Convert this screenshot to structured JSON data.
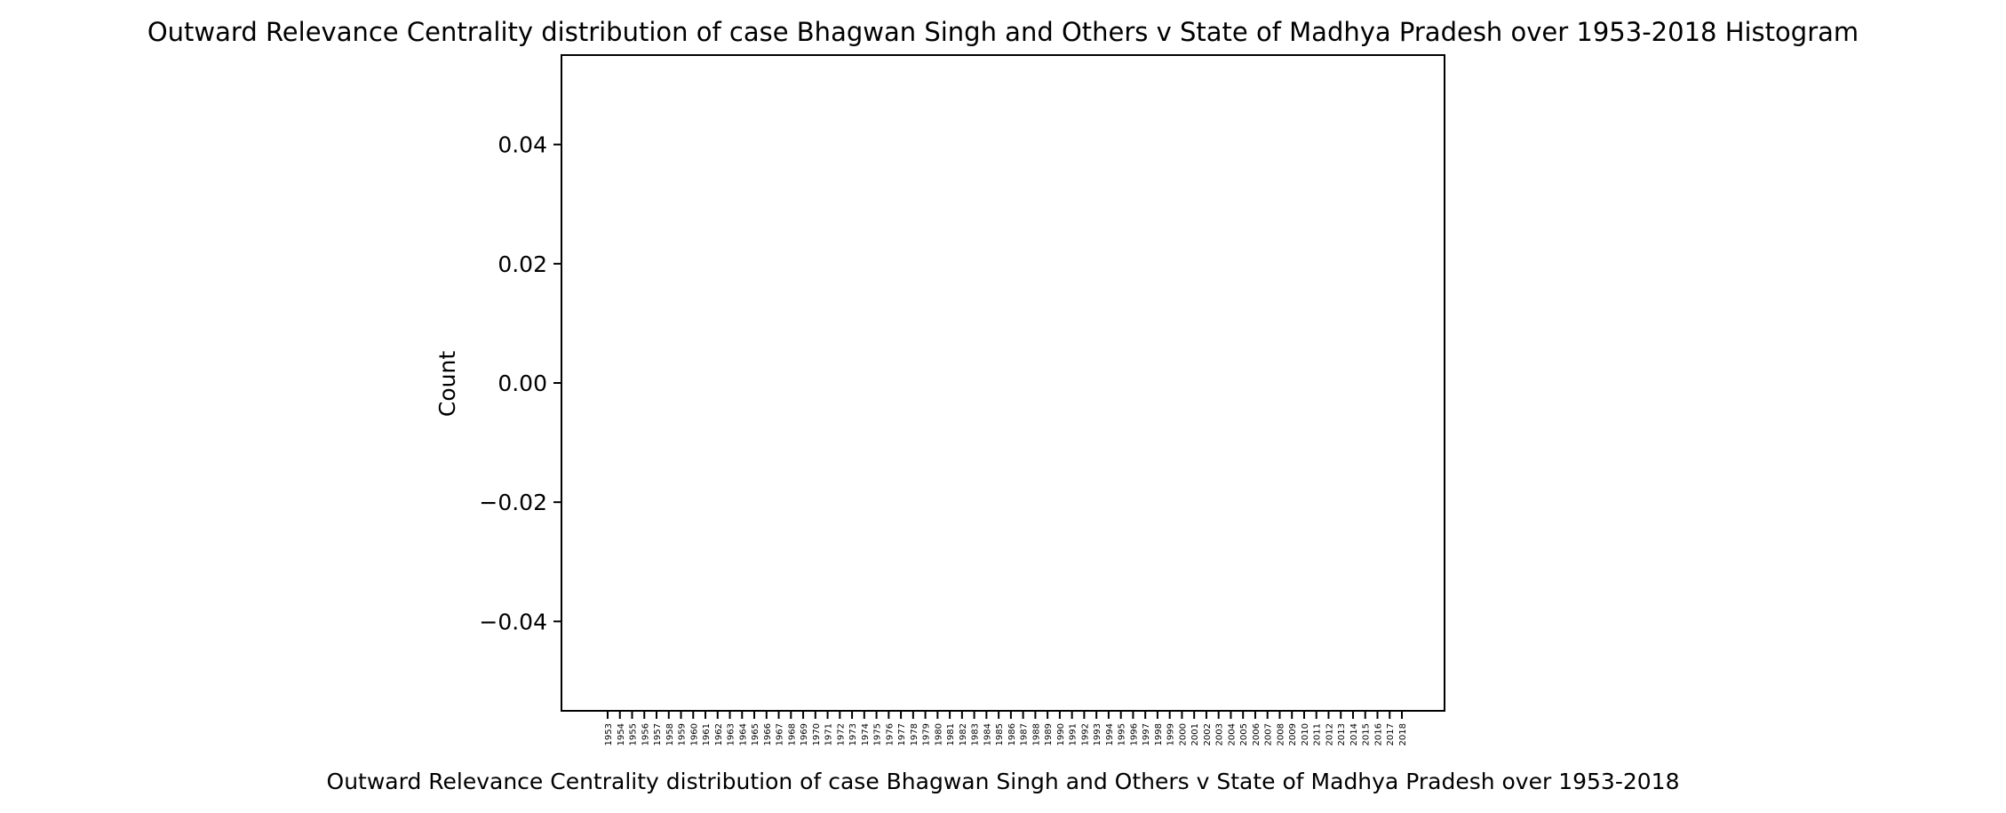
{
  "chart_data": {
    "type": "bar",
    "title": "Outward Relevance Centrality distribution of case Bhagwan Singh and Others v State of Madhya Pradesh over 1953-2018 Histogram",
    "xlabel": "Outward Relevance Centrality distribution of case Bhagwan Singh and Others v State of Madhya Pradesh over 1953-2018",
    "ylabel": "Count",
    "categories": [
      "1953",
      "1954",
      "1955",
      "1956",
      "1957",
      "1958",
      "1959",
      "1960",
      "1961",
      "1962",
      "1963",
      "1964",
      "1965",
      "1966",
      "1967",
      "1968",
      "1969",
      "1970",
      "1971",
      "1972",
      "1973",
      "1974",
      "1975",
      "1976",
      "1977",
      "1978",
      "1979",
      "1980",
      "1981",
      "1982",
      "1983",
      "1984",
      "1985",
      "1986",
      "1987",
      "1988",
      "1989",
      "1990",
      "1991",
      "1992",
      "1993",
      "1994",
      "1995",
      "1996",
      "1997",
      "1998",
      "1999",
      "2000",
      "2001",
      "2002",
      "2003",
      "2004",
      "2005",
      "2006",
      "2007",
      "2008",
      "2009",
      "2010",
      "2011",
      "2012",
      "2013",
      "2014",
      "2015",
      "2016",
      "2017",
      "2018"
    ],
    "values": [
      0,
      0,
      0,
      0,
      0,
      0,
      0,
      0,
      0,
      0,
      0,
      0,
      0,
      0,
      0,
      0,
      0,
      0,
      0,
      0,
      0,
      0,
      0,
      0,
      0,
      0,
      0,
      0,
      0,
      0,
      0,
      0,
      0,
      0,
      0,
      0,
      0,
      0,
      0,
      0,
      0,
      0,
      0,
      0,
      0,
      0,
      0,
      0,
      0,
      0,
      0,
      0,
      0,
      0,
      0,
      0,
      0,
      0,
      0,
      0,
      0,
      0,
      0,
      0,
      0,
      0
    ],
    "ylim": [
      -0.055,
      0.055
    ],
    "yticks": [
      -0.04,
      -0.02,
      0.0,
      0.02,
      0.04
    ],
    "ytick_labels": [
      "−0.04",
      "−0.02",
      "0.00",
      "0.02",
      "0.04"
    ],
    "grid": false,
    "colors": {
      "bar": "#1f77b4",
      "axes": "#000000",
      "background": "#ffffff"
    }
  }
}
